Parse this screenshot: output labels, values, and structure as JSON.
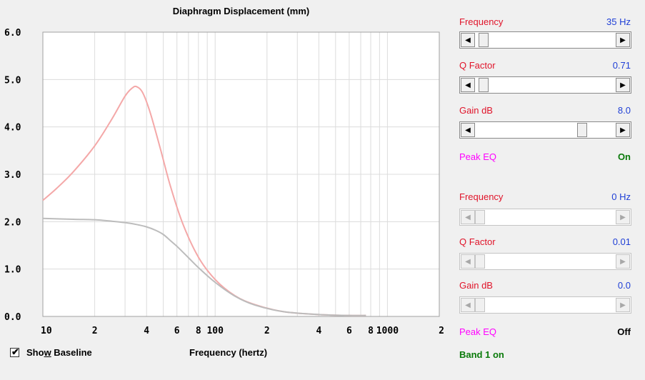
{
  "chart_data": {
    "type": "line",
    "title": "Diaphragm Displacement (mm)",
    "xlabel": "Frequency (hertz)",
    "ylabel": "",
    "xscale": "log",
    "xlim": [
      10,
      2000
    ],
    "ylim": [
      0,
      6
    ],
    "y_ticks": [
      "6.0",
      "5.0",
      "4.0",
      "3.0",
      "2.0",
      "1.0",
      "0.0"
    ],
    "x_ticks": [
      "10",
      "2",
      "4",
      "6",
      "8",
      "100",
      "2",
      "4",
      "6",
      "8",
      "1000",
      "2"
    ],
    "grid": true,
    "series": [
      {
        "color": "#f4a8a8",
        "x": [
          10,
          12,
          15,
          20,
          25,
          30,
          33,
          35,
          38,
          42,
          48,
          55,
          65,
          80,
          100,
          130,
          170,
          250,
          400,
          600,
          750
        ],
        "y": [
          2.45,
          2.7,
          3.05,
          3.6,
          4.15,
          4.65,
          4.82,
          4.85,
          4.72,
          4.3,
          3.55,
          2.75,
          1.95,
          1.25,
          0.78,
          0.44,
          0.25,
          0.1,
          0.04,
          0.02,
          0.02
        ]
      },
      {
        "color": "#bcbcbc",
        "x": [
          10,
          15,
          20,
          25,
          30,
          35,
          40,
          45,
          50,
          55,
          60,
          70,
          80,
          100,
          130,
          170,
          250,
          400,
          600,
          750
        ],
        "y": [
          2.07,
          2.05,
          2.04,
          2.01,
          1.98,
          1.94,
          1.89,
          1.82,
          1.73,
          1.6,
          1.48,
          1.24,
          1.03,
          0.72,
          0.43,
          0.24,
          0.1,
          0.04,
          0.02,
          0.02
        ]
      }
    ]
  },
  "show_baseline": {
    "label_pre": "Sho",
    "label_u": "w",
    "label_post": " Baseline",
    "checked": true
  },
  "band1": {
    "frequency_label": "Frequency",
    "frequency_value": "35 Hz",
    "q_label": "Q Factor",
    "q_value": "0.71",
    "gain_label": "Gain  dB",
    "gain_value": "8.0",
    "peak_label": "Peak EQ",
    "peak_state": "On",
    "frequency_level": 0.03,
    "q_level": 0.03,
    "gain_level": 0.78
  },
  "band2": {
    "frequency_label": "Frequency",
    "frequency_value": "0 Hz",
    "q_label": "Q Factor",
    "q_value": "0.01",
    "gain_label": "Gain  dB",
    "gain_value": "0.0",
    "peak_label": "Peak EQ",
    "peak_state": "Off",
    "frequency_level": 0.0,
    "q_level": 0.0,
    "gain_level": 0.0
  },
  "status": "Band 1 on",
  "arrows": {
    "left": "◀",
    "right": "▶"
  },
  "colors": {
    "red_label": "#e0142a",
    "blue_value": "#1f3fd6",
    "peak_label": "#ff00ff",
    "status": "#0a7a0a"
  }
}
